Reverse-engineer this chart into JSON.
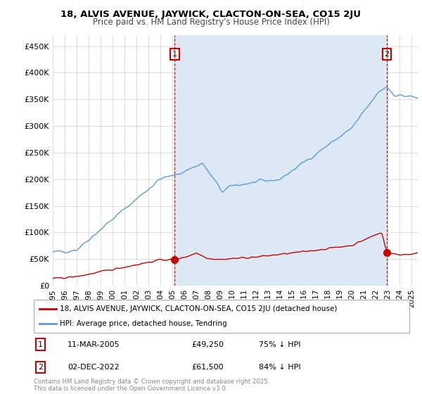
{
  "title1": "18, ALVIS AVENUE, JAYWICK, CLACTON-ON-SEA, CO15 2JU",
  "title2": "Price paid vs. HM Land Registry's House Price Index (HPI)",
  "ylabel_ticks": [
    "£0",
    "£50K",
    "£100K",
    "£150K",
    "£200K",
    "£250K",
    "£300K",
    "£350K",
    "£400K",
    "£450K"
  ],
  "ytick_values": [
    0,
    50000,
    100000,
    150000,
    200000,
    250000,
    300000,
    350000,
    400000,
    450000
  ],
  "ylim": [
    0,
    470000
  ],
  "xlim_start": 1995.0,
  "xlim_end": 2025.5,
  "hpi_color": "#5b9bd5",
  "hpi_fill_color": "#dce9f5",
  "price_color": "#cc0000",
  "dashed_color": "#cc0000",
  "marker1_date": 2005.19,
  "marker1_price": 49250,
  "marker2_date": 2022.92,
  "marker2_price": 61500,
  "legend_label1": "18, ALVIS AVENUE, JAYWICK, CLACTON-ON-SEA, CO15 2JU (detached house)",
  "legend_label2": "HPI: Average price, detached house, Tendring",
  "note1_label": "1",
  "note1_date": "11-MAR-2005",
  "note1_price": "£49,250",
  "note1_hpi": "75% ↓ HPI",
  "note2_label": "2",
  "note2_date": "02-DEC-2022",
  "note2_price": "£61,500",
  "note2_hpi": "84% ↓ HPI",
  "footer": "Contains HM Land Registry data © Crown copyright and database right 2025.\nThis data is licensed under the Open Government Licence v3.0.",
  "background_color": "#ffffff",
  "grid_color": "#d0d0d0"
}
